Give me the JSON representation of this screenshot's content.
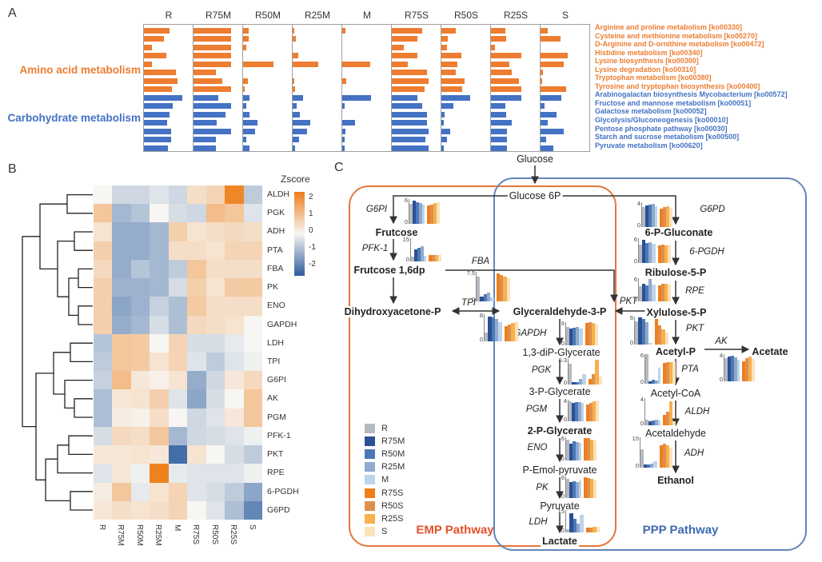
{
  "figure": {
    "panel_a_label": "A",
    "panel_b_label": "B",
    "panel_c_label": "C"
  },
  "colors": {
    "bar_orange": "#ED7D31",
    "bar_blue": "#4472C4",
    "heatmap_positive": "#EE7D16",
    "heatmap_negative": "#2A5C9E",
    "heatmap_mid": "#F7F6F3",
    "emp_box": "#E4763C",
    "ppp_box": "#6286B9",
    "emp_title_color": "#E4502A",
    "ppp_title_color": "#3B69B0"
  },
  "conditions": [
    "R",
    "R75M",
    "R50M",
    "R25M",
    "M",
    "R75S",
    "R50S",
    "R25S",
    "S"
  ],
  "condition_colors": [
    "#B4BAC0",
    "#2A5196",
    "#4C78B5",
    "#8FA9CF",
    "#BDD4EA",
    "#F07E1A",
    "#DD8F4F",
    "#F7B04C",
    "#FAE2BB"
  ],
  "panelA": {
    "group_labels": [
      {
        "text": "Amino acid metabolism",
        "color": "#ED7D31"
      },
      {
        "text": "Carbohydrate metabolism",
        "color": "#4472C4"
      }
    ],
    "pathways": [
      {
        "label": "Arginine and proline metabolism [ko00330]",
        "group": "amino"
      },
      {
        "label": "Cysteine and methionine metabolism [ko00270]",
        "group": "amino"
      },
      {
        "label": "D-Arginine and D-ornithine metabolism [ko00472]",
        "group": "amino"
      },
      {
        "label": "Histidine metabolism [ko00340]",
        "group": "amino"
      },
      {
        "label": "Lysine biosynthesis [ko00300]",
        "group": "amino"
      },
      {
        "label": "Lysine degradation [ko00310]",
        "group": "amino"
      },
      {
        "label": "Tryptophan metabolism [ko00380]",
        "group": "amino"
      },
      {
        "label": "Tyrosine and tryptophan biosynthesis [ko00400]",
        "group": "amino"
      },
      {
        "label": "Arabinogalactan biosynthesis Mycobacterium [ko00572]",
        "group": "carb"
      },
      {
        "label": "Fructose and mannose metabolism [ko00051]",
        "group": "carb"
      },
      {
        "label": "Galactose metabolism [ko00052]",
        "group": "carb"
      },
      {
        "label": "Glycolysis/Gluconeogenesis [ko00010]",
        "group": "carb"
      },
      {
        "label": "Pentose phosphate pathway [ko00030]",
        "group": "carb"
      },
      {
        "label": "Starch and sucrose metabolism [ko00500]",
        "group": "carb"
      },
      {
        "label": "Pyruvate metabolism [ko00620]",
        "group": "carb"
      }
    ],
    "relative_bar_widths": {
      "R": [
        0.55,
        0.42,
        0.17,
        0.48,
        0.17,
        0.68,
        0.72,
        0.6,
        0.82,
        0.62,
        0.55,
        0.5,
        0.58,
        0.58,
        0.52
      ],
      "R75M": [
        0.8,
        0.8,
        0.8,
        0.8,
        0.8,
        0.47,
        0.62,
        0.8,
        0.53,
        0.8,
        0.68,
        0.5,
        0.8,
        0.47,
        0.47
      ],
      "R50M": [
        0.12,
        0.12,
        0.07,
        0.0,
        0.65,
        0.0,
        0.1,
        0.03,
        0.13,
        0.07,
        0.13,
        0.3,
        0.25,
        0.06,
        0.13
      ],
      "R25M": [
        0.04,
        0.07,
        0.0,
        0.12,
        0.55,
        0.0,
        0.03,
        0.05,
        0.22,
        0.08,
        0.15,
        0.37,
        0.3,
        0.13,
        0.05
      ],
      "M": [
        0.06,
        0.0,
        0.0,
        0.0,
        0.6,
        0.0,
        0.08,
        0.0,
        0.62,
        0.05,
        0.0,
        0.28,
        0.06,
        0.05,
        0.05
      ],
      "R75S": [
        0.65,
        0.55,
        0.25,
        0.55,
        0.35,
        0.75,
        0.78,
        0.7,
        0.55,
        0.65,
        0.75,
        0.75,
        0.78,
        0.72,
        0.78
      ],
      "R50S": [
        0.3,
        0.13,
        0.12,
        0.43,
        0.35,
        0.3,
        0.5,
        0.45,
        0.62,
        0.25,
        0.06,
        0.05,
        0.18,
        0.12,
        0.05
      ],
      "R25S": [
        0.3,
        0.33,
        0.08,
        0.65,
        0.4,
        0.45,
        0.6,
        0.65,
        0.65,
        0.3,
        0.33,
        0.45,
        0.35,
        0.35,
        0.35
      ],
      "S": [
        0.15,
        0.42,
        0.0,
        0.58,
        0.5,
        0.05,
        0.03,
        0.55,
        0.45,
        0.08,
        0.35,
        0.15,
        0.5,
        0.12,
        0.28
      ]
    }
  },
  "panelB": {
    "zscore_title": "Zscore",
    "colorbar_ticks": [
      "2",
      "1",
      "0",
      "-1",
      "-2"
    ],
    "rows": [
      "ALDH",
      "PGK",
      "ADH",
      "PTA",
      "FBA",
      "PK",
      "ENO",
      "GAPDH",
      "LDH",
      "TPI",
      "G6PI",
      "AK",
      "PGM",
      "PFK-1",
      "PKT",
      "RPE",
      "6-PGDH",
      "G6PD"
    ],
    "zscores": [
      [
        0,
        -0.5,
        -0.5,
        -0.3,
        -0.5,
        0.5,
        0.7,
        2.3,
        -0.7
      ],
      [
        1,
        -1,
        -0.8,
        0,
        -0.4,
        -0.5,
        1.2,
        1,
        -0.3
      ],
      [
        0.4,
        -1.2,
        -1.2,
        -1,
        0.8,
        0.4,
        0.5,
        0.6,
        0.5
      ],
      [
        0.8,
        -1.2,
        -1.2,
        -1,
        0.5,
        0.5,
        0.4,
        0.7,
        0.7
      ],
      [
        0.6,
        -1.2,
        -0.8,
        -1,
        -0.7,
        1,
        0.5,
        0.5,
        0.5
      ],
      [
        0.8,
        -1.1,
        -1.1,
        -1,
        -0.4,
        0.8,
        0.4,
        0.9,
        0.9
      ],
      [
        0.8,
        -1.3,
        -1.1,
        -0.6,
        -0.9,
        0.9,
        0.5,
        0.5,
        0.5
      ],
      [
        0.8,
        -1.2,
        -1,
        -0.4,
        -0.9,
        0.6,
        0.5,
        0.4,
        0
      ],
      [
        -0.8,
        1,
        0.9,
        0,
        0.7,
        -0.4,
        -0.4,
        -0.2,
        0
      ],
      [
        -0.7,
        1,
        0.9,
        0.4,
        0.7,
        -0.3,
        -0.7,
        -0.3,
        -0.1
      ],
      [
        -0.6,
        1.2,
        0.3,
        0.1,
        0.4,
        -1.2,
        -0.5,
        0.3,
        0.6
      ],
      [
        -0.9,
        0.3,
        0.4,
        0.8,
        -0.3,
        -1.3,
        -0.4,
        0,
        1
      ],
      [
        -0.9,
        0.2,
        0.1,
        0.5,
        0,
        -0.5,
        -0.3,
        0.3,
        1
      ],
      [
        -0.4,
        0.6,
        0.5,
        1,
        -1,
        -0.5,
        -0.4,
        -0.3,
        -0.1
      ],
      [
        0.3,
        0.3,
        0.4,
        0.3,
        -2.2,
        0.4,
        0,
        -0.4,
        -0.7
      ],
      [
        -0.3,
        0.3,
        -0.1,
        2.4,
        -0.2,
        -0.3,
        -0.3,
        -0.3,
        -0.1
      ],
      [
        0.2,
        1,
        -0.2,
        0.4,
        0.7,
        -0.3,
        -0.4,
        -0.7,
        -1.3
      ],
      [
        0.3,
        0.5,
        0.4,
        0.5,
        0.7,
        0,
        -0.3,
        -0.9,
        -1.8
      ]
    ]
  },
  "panelC": {
    "emp_title": "EMP Pathway",
    "ppp_title": "PPP Pathway",
    "nodes": {
      "glucose": "Glucose",
      "glucose6p": "Glucose 6P",
      "frutcose": "Frutcose",
      "frutcose16dp": "Frutcose 1,6dp",
      "dhap": "Dihydroxyacetone-P",
      "ga3p": "Glyceraldehyde-3-P",
      "dpg13": "1,3-diP-Glycerate",
      "pg3": "3-P-Glycerate",
      "pg2": "2-P-Glycerate",
      "pep": "P-Emol-pyruvate",
      "pyruvate": "Pyruvate",
      "lactate": "Lactate",
      "gluconate6p": "6-P-Gluconate",
      "ribulose5p": "Ribulose-5-P",
      "xylulose5p": "Xylulose-5-P",
      "acetylp": "Acetyl-P",
      "acetate": "Acetate",
      "acetylcoa": "Acetyl-CoA",
      "acetaldehyde": "Acetaldehyde",
      "ethanol": "Ethanol"
    },
    "enzymes": {
      "g6pi": "G6PI",
      "pfk1": "PFK-1",
      "fba": "FBA",
      "tpi": "TPI",
      "gapdh": "GAPDH",
      "pgk": "PGK",
      "pgm": "PGM",
      "eno": "ENO",
      "pk": "PK",
      "ldh": "LDH",
      "g6pd": "G6PD",
      "pgdh6": "6-PGDH",
      "rpe": "RPE",
      "pkt": "PKT",
      "ak": "AK",
      "pta": "PTA",
      "aldh": "ALDH",
      "adh": "ADH"
    },
    "charts": {
      "G6PI": {
        "ymax": 6,
        "values": [
          4.8,
          5.6,
          5.2,
          5.0,
          4.6,
          4.4,
          4.7,
          5.0,
          5.2
        ]
      },
      "PFK-1": {
        "ymax": 15,
        "values": [
          3,
          8,
          9,
          10,
          3.5,
          4,
          4,
          4,
          4.2
        ]
      },
      "FBA": {
        "ymax": 7.5,
        "values": [
          6.3,
          1.3,
          1.8,
          2.3,
          1.0,
          7.0,
          6.6,
          6.2,
          5.9
        ]
      },
      "TPI": {
        "ymax": 8,
        "values": [
          2.5,
          7.4,
          7.0,
          6.6,
          5.6,
          4.4,
          5.0,
          5.5,
          6.0
        ]
      },
      "GAPDH": {
        "ymax": 6,
        "values": [
          4.8,
          4.3,
          4.6,
          4.8,
          4.4,
          5.7,
          5.9,
          5.7,
          5.4
        ]
      },
      "PGK": {
        "ymax": 0.3,
        "values": [
          0.24,
          0.03,
          0.03,
          0.07,
          0.12,
          0.07,
          0.12,
          0.29,
          0.09
        ]
      },
      "PGM": {
        "ymax": 4,
        "values": [
          3.7,
          3.4,
          3.5,
          3.6,
          3.4,
          3.1,
          3.4,
          3.7,
          3.9
        ]
      },
      "ENO": {
        "ymax": 6,
        "values": [
          5.4,
          4.4,
          4.9,
          4.7,
          4.5,
          5.7,
          5.7,
          5.4,
          5.1
        ]
      },
      "PK": {
        "ymax": 6,
        "values": [
          5.4,
          4.4,
          4.7,
          4.5,
          4.9,
          5.7,
          5.5,
          5.3,
          5.1
        ]
      },
      "LDH": {
        "ymax": 15,
        "values": [
          2,
          13,
          9,
          6,
          12,
          3,
          3,
          4,
          4
        ]
      },
      "G6PD": {
        "ymax": 4,
        "values": [
          3.2,
          3.5,
          3.6,
          3.7,
          3.4,
          3.0,
          3.2,
          3.3,
          3.1
        ]
      },
      "6-PGDH": {
        "ymax": 6,
        "values": [
          4.5,
          5.6,
          4.8,
          5.0,
          4.6,
          4.2,
          4.5,
          4.3,
          4.4
        ]
      },
      "RPE": {
        "ymax": 6,
        "values": [
          4.0,
          4.5,
          4.2,
          5.8,
          4.3,
          4.2,
          4.5,
          4.6,
          4.4
        ]
      },
      "PKT": {
        "ymax": 6,
        "values": [
          5.0,
          5.8,
          5.5,
          4.8,
          0.3,
          5.5,
          4.2,
          3.2,
          2.5
        ]
      },
      "AK": {
        "ymax": 4,
        "values": [
          3.4,
          3.6,
          3.8,
          3.5,
          3.2,
          3.0,
          3.4,
          3.6,
          3.3
        ]
      },
      "PTA": {
        "ymax": 6,
        "values": [
          6.0,
          0.5,
          0.8,
          0.6,
          3.3,
          4.2,
          4.4,
          4.3,
          4.5
        ]
      },
      "ALDH": {
        "ymax": 4,
        "values": [
          0.8,
          0.6,
          0.7,
          0.8,
          0.7,
          1.5,
          2.0,
          3.5,
          0.6
        ]
      },
      "ADH": {
        "ymax": 15,
        "values": [
          9,
          1.5,
          1.5,
          2,
          3,
          11,
          12,
          11,
          10
        ]
      }
    }
  }
}
